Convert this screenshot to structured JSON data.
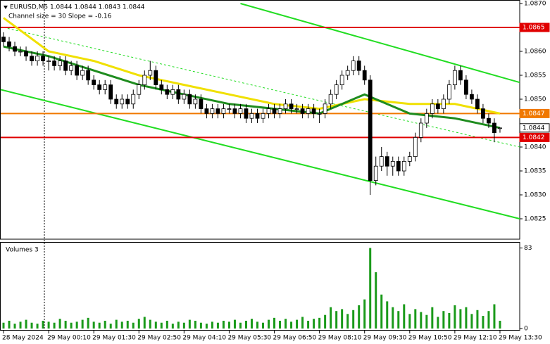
{
  "chart_data": {
    "type": "candlestick",
    "title": "EURUSD,M5  1.0844 1.0844 1.0843 1.0844",
    "subtitle": "Channel size = 30 Slope = -0.16",
    "xlim": [
      -0.5,
      91.5
    ],
    "ylim": [
      1.0825,
      1.087
    ],
    "yticks": [
      {
        "value": 1.087,
        "label": "1.0870"
      },
      {
        "value": 1.086,
        "label": "1.0860"
      },
      1.0855,
      {
        "value": 1.085,
        "label": "1.0850"
      },
      {
        "value": 1.084,
        "label": "1.0840"
      },
      1.0835,
      {
        "value": 1.083,
        "label": "1.0830"
      },
      1.0825
    ],
    "xticks": [
      {
        "value": 0,
        "label": "28 May 2024"
      },
      {
        "value": 8,
        "label": "29 May 00:10"
      },
      {
        "value": 16,
        "label": "29 May 01:30"
      },
      {
        "value": 24,
        "label": "29 May 02:50"
      },
      {
        "value": 32,
        "label": "29 May 04:10"
      },
      {
        "value": 40,
        "label": "29 May 05:30"
      },
      {
        "value": 48,
        "label": "29 May 06:50"
      },
      {
        "value": 56,
        "label": "29 May 08:10"
      },
      {
        "value": 64,
        "label": "29 May 09:30"
      },
      {
        "value": 72,
        "label": "29 May 10:50"
      },
      {
        "value": 80,
        "label": "29 May 12:10"
      },
      {
        "value": 88,
        "label": "29 May 13:30"
      }
    ],
    "candles": [
      [
        1.0863,
        1.0864,
        1.0861,
        1.0862
      ],
      [
        1.0862,
        1.0863,
        1.086,
        1.0861
      ],
      [
        1.0861,
        1.0862,
        1.0859,
        1.086
      ],
      [
        1.086,
        1.0861,
        1.0859,
        1.086
      ],
      [
        1.086,
        1.0861,
        1.0858,
        1.0859
      ],
      [
        1.0859,
        1.086,
        1.0857,
        1.0858
      ],
      [
        1.0858,
        1.086,
        1.0857,
        1.0859
      ],
      [
        1.0859,
        1.086,
        1.0857,
        1.0858
      ],
      [
        1.0858,
        1.0859,
        1.0856,
        1.0858
      ],
      [
        1.0858,
        1.0859,
        1.0856,
        1.0857
      ],
      [
        1.0857,
        1.0859,
        1.0856,
        1.0858
      ],
      [
        1.0858,
        1.0859,
        1.0855,
        1.0856
      ],
      [
        1.0856,
        1.0858,
        1.0855,
        1.0857
      ],
      [
        1.0857,
        1.0858,
        1.0854,
        1.0855
      ],
      [
        1.0855,
        1.0857,
        1.0854,
        1.0856
      ],
      [
        1.0856,
        1.0857,
        1.0853,
        1.0854
      ],
      [
        1.0854,
        1.0855,
        1.0852,
        1.0853
      ],
      [
        1.0853,
        1.0854,
        1.0851,
        1.0852
      ],
      [
        1.0852,
        1.0854,
        1.0851,
        1.0853
      ],
      [
        1.0853,
        1.0854,
        1.0849,
        1.085
      ],
      [
        1.085,
        1.0851,
        1.0848,
        1.0849
      ],
      [
        1.0849,
        1.0851,
        1.0848,
        1.085
      ],
      [
        1.085,
        1.0851,
        1.0848,
        1.0849
      ],
      [
        1.0849,
        1.0852,
        1.0848,
        1.0851
      ],
      [
        1.0851,
        1.0854,
        1.085,
        1.0853
      ],
      [
        1.0853,
        1.0856,
        1.0852,
        1.0855
      ],
      [
        1.0855,
        1.0858,
        1.0854,
        1.0856
      ],
      [
        1.0856,
        1.0857,
        1.0852,
        1.0853
      ],
      [
        1.0853,
        1.0854,
        1.0851,
        1.0852
      ],
      [
        1.0852,
        1.0853,
        1.085,
        1.0851
      ],
      [
        1.0851,
        1.0853,
        1.085,
        1.0852
      ],
      [
        1.0852,
        1.0853,
        1.0849,
        1.085
      ],
      [
        1.085,
        1.0852,
        1.0849,
        1.0851
      ],
      [
        1.0851,
        1.0852,
        1.0848,
        1.0849
      ],
      [
        1.0849,
        1.0851,
        1.0848,
        1.085
      ],
      [
        1.085,
        1.0851,
        1.0847,
        1.0848
      ],
      [
        1.0848,
        1.0849,
        1.0846,
        1.0847
      ],
      [
        1.0847,
        1.0849,
        1.0846,
        1.0848
      ],
      [
        1.0848,
        1.0849,
        1.0846,
        1.0847
      ],
      [
        1.0847,
        1.0849,
        1.0846,
        1.0848
      ],
      [
        1.0848,
        1.0849,
        1.0847,
        1.0848
      ],
      [
        1.0848,
        1.0849,
        1.0846,
        1.0847
      ],
      [
        1.0847,
        1.0849,
        1.0846,
        1.0848
      ],
      [
        1.0848,
        1.0849,
        1.0845,
        1.0846
      ],
      [
        1.0846,
        1.0848,
        1.0845,
        1.0847
      ],
      [
        1.0847,
        1.0848,
        1.0845,
        1.0846
      ],
      [
        1.0846,
        1.0848,
        1.0845,
        1.0847
      ],
      [
        1.0847,
        1.0849,
        1.0846,
        1.0848
      ],
      [
        1.0848,
        1.0849,
        1.0846,
        1.0847
      ],
      [
        1.0847,
        1.0849,
        1.0846,
        1.0848
      ],
      [
        1.0848,
        1.085,
        1.0847,
        1.0849
      ],
      [
        1.0849,
        1.085,
        1.0847,
        1.0848
      ],
      [
        1.0848,
        1.0849,
        1.0847,
        1.0848
      ],
      [
        1.0848,
        1.0849,
        1.0846,
        1.0847
      ],
      [
        1.0847,
        1.0849,
        1.0846,
        1.0848
      ],
      [
        1.0848,
        1.0849,
        1.0846,
        1.0847
      ],
      [
        1.0847,
        1.0848,
        1.0845,
        1.0847
      ],
      [
        1.0847,
        1.085,
        1.0846,
        1.0849
      ],
      [
        1.0849,
        1.0852,
        1.0848,
        1.0851
      ],
      [
        1.0851,
        1.0854,
        1.085,
        1.0853
      ],
      [
        1.0853,
        1.0856,
        1.0852,
        1.0855
      ],
      [
        1.0855,
        1.0857,
        1.0854,
        1.0856
      ],
      [
        1.0856,
        1.0859,
        1.0855,
        1.0858
      ],
      [
        1.0858,
        1.0859,
        1.0855,
        1.0856
      ],
      [
        1.0856,
        1.0857,
        1.0853,
        1.0854
      ],
      [
        1.0854,
        1.0855,
        1.083,
        1.0833
      ],
      [
        1.0833,
        1.0838,
        1.0832,
        1.0836
      ],
      [
        1.0836,
        1.084,
        1.0835,
        1.0838
      ],
      [
        1.0838,
        1.0839,
        1.0834,
        1.0836
      ],
      [
        1.0836,
        1.0838,
        1.0834,
        1.0837
      ],
      [
        1.0837,
        1.0838,
        1.0834,
        1.0835
      ],
      [
        1.0835,
        1.0838,
        1.0834,
        1.0837
      ],
      [
        1.0837,
        1.0839,
        1.0836,
        1.0838
      ],
      [
        1.0838,
        1.0843,
        1.0837,
        1.0842
      ],
      [
        1.0842,
        1.0846,
        1.0841,
        1.0845
      ],
      [
        1.0845,
        1.0848,
        1.0844,
        1.0847
      ],
      [
        1.0847,
        1.085,
        1.0846,
        1.0849
      ],
      [
        1.0849,
        1.085,
        1.0847,
        1.0848
      ],
      [
        1.0848,
        1.0851,
        1.0847,
        1.085
      ],
      [
        1.085,
        1.0854,
        1.0849,
        1.0853
      ],
      [
        1.0853,
        1.0857,
        1.0852,
        1.0856
      ],
      [
        1.0856,
        1.0857,
        1.0853,
        1.0854
      ],
      [
        1.0854,
        1.0855,
        1.085,
        1.0851
      ],
      [
        1.0851,
        1.0852,
        1.0849,
        1.085
      ],
      [
        1.085,
        1.0851,
        1.0847,
        1.0848
      ],
      [
        1.0848,
        1.0849,
        1.0845,
        1.0846
      ],
      [
        1.0846,
        1.0847,
        1.0844,
        1.0845
      ],
      [
        1.0845,
        1.0846,
        1.0841,
        1.0843
      ],
      [
        1.0844,
        1.0844,
        1.0843,
        1.0844
      ]
    ],
    "lines": [
      {
        "color": "#f0e000",
        "width": 3,
        "x": [
          0,
          8,
          16,
          24,
          32,
          40,
          48,
          56,
          64,
          72,
          80,
          88
        ],
        "values": [
          1.0867,
          1.086,
          1.0858,
          1.0855,
          1.0853,
          1.0851,
          1.0849,
          1.0848,
          1.085,
          1.0849,
          1.0849,
          1.0847
        ]
      },
      {
        "color": "#1e8c1e",
        "width": 3,
        "x": [
          0,
          8,
          16,
          24,
          32,
          40,
          48,
          56,
          64,
          72,
          80,
          88
        ],
        "values": [
          1.0861,
          1.0859,
          1.0856,
          1.0853,
          1.0851,
          1.0849,
          1.0848,
          1.0847,
          1.0851,
          1.0847,
          1.0846,
          1.0844
        ]
      }
    ],
    "channel": [
      {
        "color": "#22dd22",
        "dash": false,
        "x": [
          42,
          91.5
        ],
        "values": [
          1.087,
          1.08535
        ]
      },
      {
        "color": "#22dd22",
        "dash": false,
        "x": [
          -0.5,
          91.5
        ],
        "values": [
          1.0852,
          1.0825
        ]
      },
      {
        "color": "#22dd22",
        "dash": true,
        "x": [
          0,
          91.5
        ],
        "values": [
          1.0865,
          1.084
        ]
      }
    ],
    "levels": [
      {
        "value": 1.0865,
        "color": "#e00000",
        "line": true
      },
      {
        "value": 1.0847,
        "color": "#f07800",
        "line": true
      },
      {
        "value": 1.0844,
        "color": "#ffffff",
        "line": false
      },
      {
        "value": 1.0842,
        "color": "#e00000",
        "line": true
      }
    ],
    "volume": {
      "title": "Volumes 3",
      "color": "#1a9a1a",
      "ylim": [
        0,
        87
      ],
      "yticks": [
        0,
        83
      ],
      "values": [
        6,
        8,
        5,
        7,
        9,
        6,
        5,
        8,
        7,
        6,
        10,
        8,
        6,
        7,
        9,
        11,
        7,
        6,
        8,
        5,
        9,
        7,
        8,
        6,
        10,
        12,
        9,
        7,
        6,
        8,
        5,
        7,
        6,
        9,
        8,
        6,
        5,
        7,
        6,
        8,
        7,
        9,
        6,
        8,
        10,
        7,
        6,
        9,
        11,
        8,
        10,
        7,
        9,
        12,
        8,
        10,
        11,
        14,
        22,
        18,
        20,
        15,
        19,
        24,
        30,
        83,
        58,
        35,
        28,
        22,
        18,
        25,
        15,
        20,
        17,
        14,
        22,
        12,
        18,
        16,
        24,
        20,
        22,
        15,
        19,
        13,
        18,
        25,
        8
      ]
    }
  }
}
